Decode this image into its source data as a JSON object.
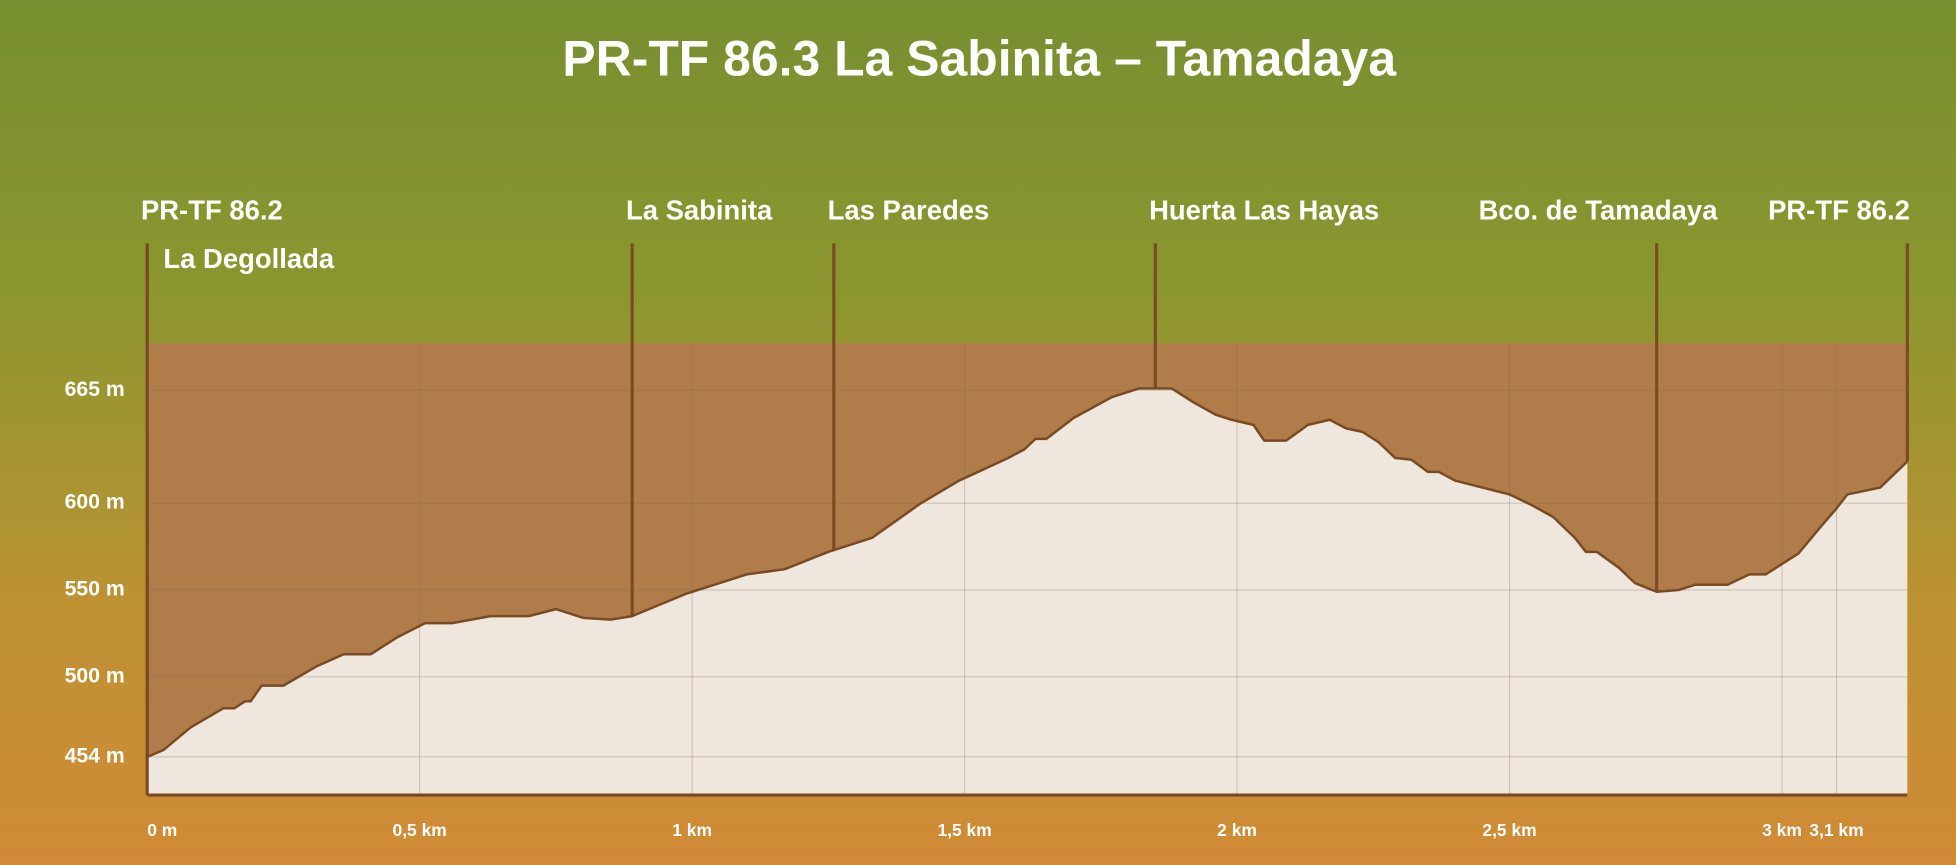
{
  "chart_data": {
    "type": "area",
    "title": "PR-TF 86.3 La Sabinita – Tamadaya",
    "x": [
      0,
      0.03,
      0.08,
      0.14,
      0.16,
      0.18,
      0.19,
      0.21,
      0.25,
      0.31,
      0.36,
      0.41,
      0.46,
      0.51,
      0.56,
      0.63,
      0.7,
      0.75,
      0.8,
      0.85,
      0.89,
      0.99,
      1.1,
      1.17,
      1.25,
      1.33,
      1.42,
      1.49,
      1.58,
      1.61,
      1.63,
      1.65,
      1.7,
      1.77,
      1.82,
      1.88,
      1.92,
      1.96,
      1.99,
      2.03,
      2.05,
      2.09,
      2.13,
      2.17,
      2.2,
      2.23,
      2.26,
      2.29,
      2.32,
      2.35,
      2.37,
      2.4,
      2.45,
      2.5,
      2.54,
      2.58,
      2.62,
      2.64,
      2.66,
      2.7,
      2.73,
      2.77,
      2.81,
      2.84,
      2.9,
      2.94,
      2.97,
      3.03,
      3.07,
      3.1,
      3.12,
      3.18,
      3.23
    ],
    "values": [
      454,
      458,
      471,
      482,
      482,
      486,
      486,
      495,
      495,
      506,
      513,
      513,
      523,
      531,
      531,
      535,
      535,
      539,
      534,
      533,
      535,
      548,
      559,
      562,
      572,
      580,
      600,
      613,
      626,
      631,
      637,
      637,
      649,
      661,
      666,
      666,
      658,
      651,
      648,
      645,
      636,
      636,
      645,
      648,
      643,
      641,
      635,
      626,
      625,
      618,
      618,
      613,
      609,
      605,
      599,
      592,
      580,
      572,
      572,
      563,
      554,
      549,
      550,
      553,
      553,
      559,
      559,
      571,
      586,
      597,
      605,
      609,
      624
    ],
    "color": "#efe6dd",
    "line_color": "#7a4a22",
    "upper_color": "#b07d4a",
    "xlim": [
      0,
      3.23
    ],
    "ylim": [
      432,
      692
    ],
    "xticks": [
      {
        "value": 0,
        "label": "0 m"
      },
      {
        "value": 0.5,
        "label": "0,5 km"
      },
      {
        "value": 1,
        "label": "1 km"
      },
      {
        "value": 1.5,
        "label": "1,5 km"
      },
      {
        "value": 2,
        "label": "2 km"
      },
      {
        "value": 2.5,
        "label": "2,5 km"
      },
      {
        "value": 3,
        "label": "3 km"
      },
      {
        "value": 3.1,
        "label": "3,1 km"
      }
    ],
    "yticks": [
      {
        "value": 454,
        "label": "454 m"
      },
      {
        "value": 500,
        "label": "500 m"
      },
      {
        "value": 550,
        "label": "550 m"
      },
      {
        "value": 600,
        "label": "600 m"
      },
      {
        "value": 665,
        "label": "665 m"
      }
    ],
    "grid": true,
    "waypoints": [
      {
        "label": "PR-TF 86.2",
        "sublabel": "La Degollada",
        "x": 0
      },
      {
        "label": "La Sabinita",
        "x": 0.89
      },
      {
        "label": "Las Paredes",
        "x": 1.26
      },
      {
        "label": "Huerta Las Hayas",
        "x": 1.85
      },
      {
        "label": "Bco. de Tamadaya",
        "x": 2.77
      },
      {
        "label": "PR-TF 86.2",
        "x": 3.23
      }
    ]
  }
}
